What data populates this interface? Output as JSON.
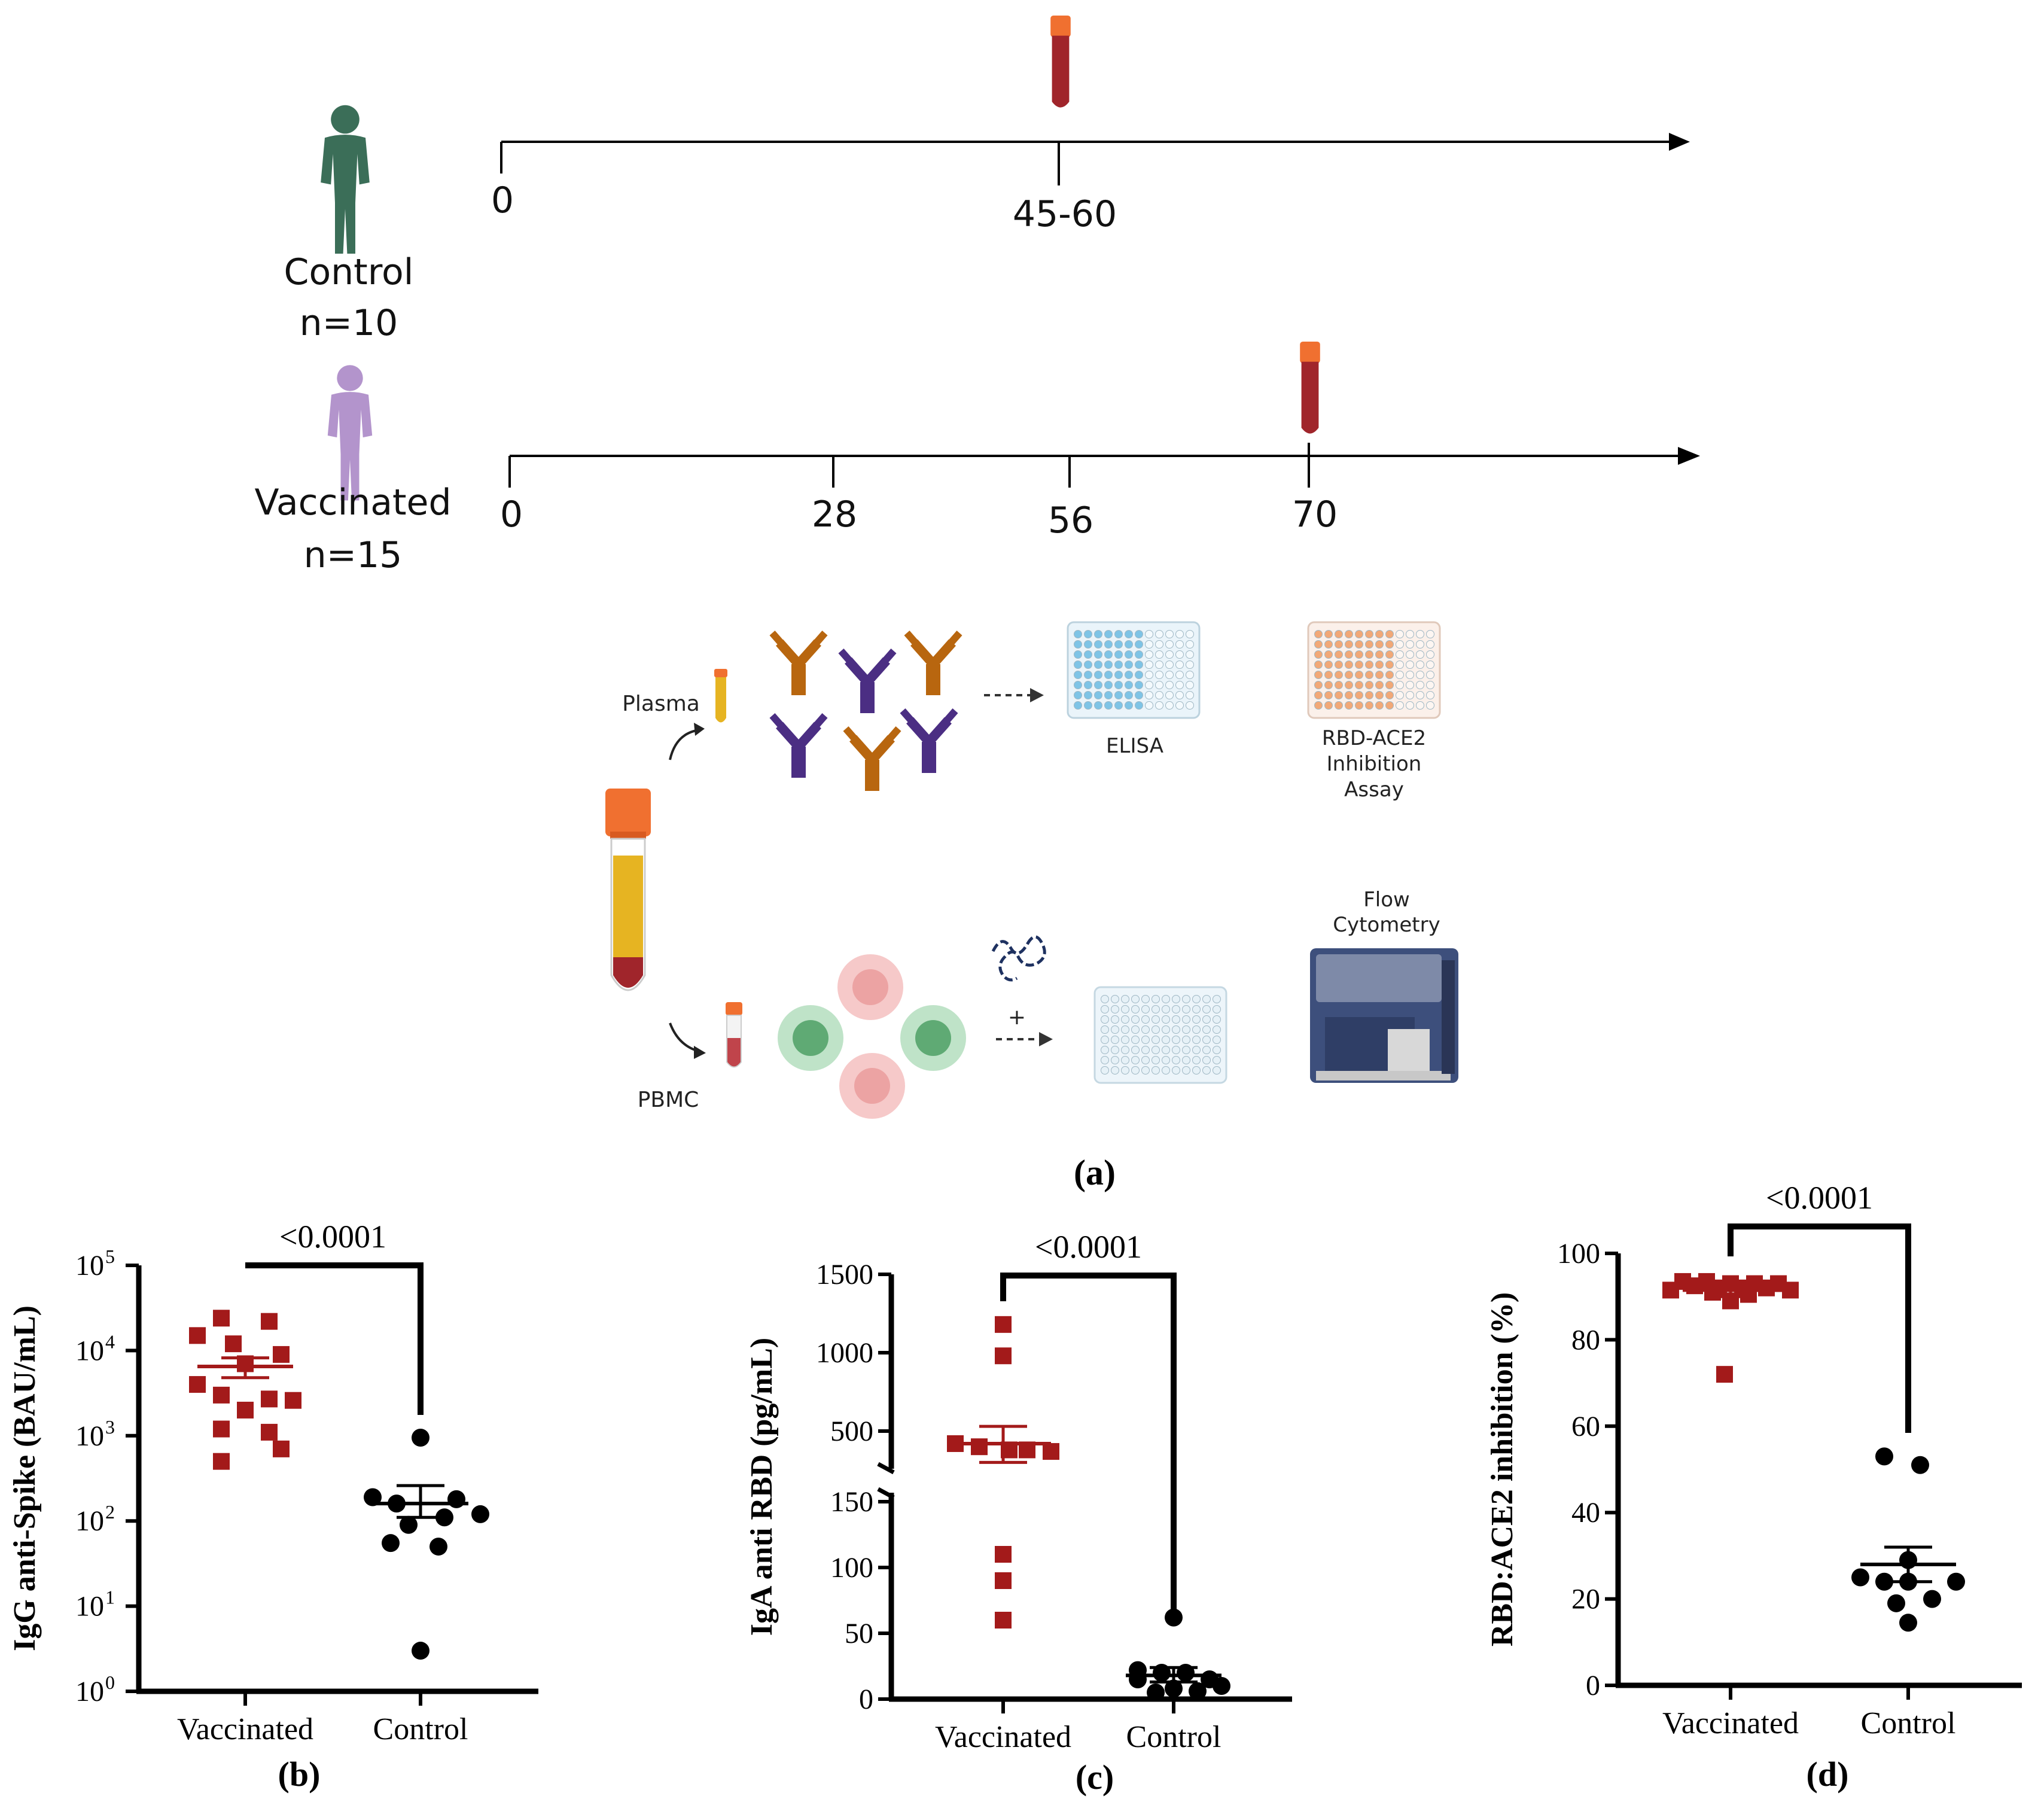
{
  "colors": {
    "vaccinated": "#a31a1a",
    "control": "#000000",
    "person_control": "#3b6e58",
    "person_vaccinated": "#b394cc",
    "antibody_orange": "#b8660f",
    "antibody_purple": "#4b2e83",
    "blood": "#a0252b",
    "cap": "#f07030",
    "plasma": "#e6b422"
  },
  "panel_a": {
    "label": "(a)",
    "control": {
      "name": "Control",
      "n": "n=10",
      "ticks": [
        "0",
        "45-60"
      ],
      "icon": "person-icon"
    },
    "vaccinated": {
      "name": "Vaccinated",
      "n": "n=15",
      "ticks": [
        "0",
        "28",
        "56",
        "70"
      ],
      "icon": "person-icon"
    },
    "workflow": {
      "plasma": "Plasma",
      "pbmc": "PBMC",
      "elisa": "ELISA",
      "rbd_ace2": [
        "RBD-ACE2",
        "Inhibition",
        "Assay"
      ],
      "flow": [
        "Flow",
        "Cytometry"
      ],
      "plus": "+"
    }
  },
  "chart_data": [
    {
      "panel": "(b)",
      "type": "scatter",
      "ylabel": "IgG anti-Spike  (BAU/mL)",
      "yscale": "log",
      "ylim": [
        1,
        100000
      ],
      "yticks": [
        "10",
        "10",
        "10",
        "10",
        "10",
        "10"
      ],
      "yticks_exp": [
        "0",
        "1",
        "2",
        "3",
        "4",
        "5"
      ],
      "categories": [
        "Vaccinated",
        "Control"
      ],
      "pvalue": "<0.0001",
      "series": [
        {
          "name": "Vaccinated",
          "marker": "square",
          "mean": 6500,
          "sem": [
            4800,
            8200
          ],
          "values": [
            24000,
            22000,
            15000,
            12000,
            9000,
            7000,
            4000,
            3000,
            2700,
            2600,
            2000,
            1200,
            1100,
            700,
            500
          ]
        },
        {
          "name": "Control",
          "marker": "circle",
          "mean": 160,
          "sem": [
            110,
            260
          ],
          "values": [
            950,
            190,
            180,
            160,
            120,
            110,
            90,
            55,
            50,
            3
          ]
        }
      ]
    },
    {
      "panel": "(c)",
      "type": "scatter",
      "ylabel": "IgA anti RBD (pg/mL)",
      "yscale": "broken",
      "ylim_lower": [
        0,
        150
      ],
      "ylim_upper": [
        150,
        1500
      ],
      "yticks": [
        "0",
        "50",
        "100",
        "150",
        "500",
        "1000",
        "1500"
      ],
      "categories": [
        "Vaccinated",
        "Control"
      ],
      "pvalue": "<0.0001",
      "series": [
        {
          "name": "Vaccinated",
          "marker": "square",
          "mean": 420,
          "sem": [
            300,
            530
          ],
          "values": [
            1180,
            980,
            420,
            400,
            380,
            380,
            370,
            110,
            90,
            60
          ]
        },
        {
          "name": "Control",
          "marker": "circle",
          "mean": 18,
          "sem": [
            13,
            24
          ],
          "values": [
            62,
            22,
            20,
            20,
            15,
            15,
            10,
            8,
            6,
            5
          ]
        }
      ]
    },
    {
      "panel": "(d)",
      "type": "scatter",
      "ylabel": "RBD:ACE2 inhibition (%)",
      "yscale": "linear",
      "ylim": [
        0,
        100
      ],
      "yticks": [
        "0",
        "20",
        "40",
        "60",
        "80",
        "100"
      ],
      "categories": [
        "Vaccinated",
        "Control"
      ],
      "pvalue": "<0.0001",
      "series": [
        {
          "name": "Vaccinated",
          "marker": "square",
          "mean": 91.5,
          "sem": [
            90,
            93
          ],
          "values": [
            93.5,
            93.5,
            93,
            93,
            93,
            92.5,
            92,
            92,
            92,
            91.5,
            91.5,
            91,
            90.5,
            89,
            72
          ]
        },
        {
          "name": "Control",
          "marker": "circle",
          "mean": 28,
          "sem": [
            24,
            32
          ],
          "values": [
            53,
            51,
            29,
            25,
            24,
            24,
            24,
            20,
            19,
            14.5
          ]
        }
      ]
    }
  ]
}
